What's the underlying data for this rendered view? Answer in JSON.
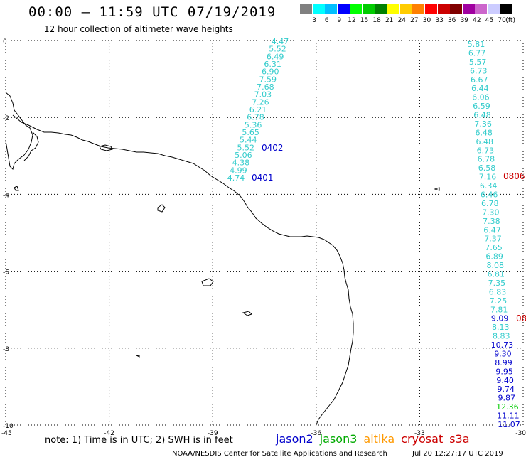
{
  "header": {
    "title": "00:00 – 11:59 UTC 07/19/2019",
    "subtitle": "12 hour collection of altimeter wave heights"
  },
  "colorbar": {
    "unit": "(ft)",
    "colors": [
      "#808080",
      "#00ffff",
      "#00bfff",
      "#0000ff",
      "#00ff00",
      "#00cc00",
      "#008000",
      "#ffff00",
      "#ffcc00",
      "#ff8000",
      "#ff0000",
      "#cc0000",
      "#800000",
      "#a000a0",
      "#cc66cc",
      "#ccccff",
      "#000000"
    ],
    "labels": [
      "3",
      "6",
      "9",
      "12",
      "15",
      "18",
      "21",
      "24",
      "27",
      "30",
      "33",
      "36",
      "39",
      "42",
      "45",
      "70"
    ]
  },
  "map": {
    "x_ticks": [
      "-45",
      "-42",
      "-39",
      "-36",
      "-33",
      "-30"
    ],
    "y_ticks": [
      "0",
      "-2",
      "-4",
      "-6",
      "-8",
      "-10"
    ],
    "x_range": [
      -45,
      -30
    ],
    "y_range": [
      -10,
      0
    ],
    "grid": true
  },
  "track_left": {
    "values": [
      "4.47",
      "5.52",
      "6.49",
      "6.31",
      "6.90",
      "7.59",
      "7.68",
      "7.03",
      "7.26",
      "6.21",
      "6.78",
      "5.36",
      "5.65",
      "5.44",
      "5.52",
      "5.06",
      "4.38",
      "4.99",
      "4.74"
    ],
    "color": "#33cccc",
    "time_labels": [
      {
        "text": "0402",
        "color": "#0000cc"
      },
      {
        "text": "0401",
        "color": "#0000cc"
      }
    ]
  },
  "track_right": {
    "values": [
      {
        "v": "5.81",
        "c": "#33cccc"
      },
      {
        "v": "6.77",
        "c": "#33cccc"
      },
      {
        "v": "5.57",
        "c": "#33cccc"
      },
      {
        "v": "6.73",
        "c": "#33cccc"
      },
      {
        "v": "6.67",
        "c": "#33cccc"
      },
      {
        "v": "6.44",
        "c": "#33cccc"
      },
      {
        "v": "6.06",
        "c": "#33cccc"
      },
      {
        "v": "6.59",
        "c": "#33cccc"
      },
      {
        "v": "6.48",
        "c": "#33cccc"
      },
      {
        "v": "7.36",
        "c": "#33cccc"
      },
      {
        "v": "6.48",
        "c": "#33cccc"
      },
      {
        "v": "6.48",
        "c": "#33cccc"
      },
      {
        "v": "6.73",
        "c": "#33cccc"
      },
      {
        "v": "6.78",
        "c": "#33cccc"
      },
      {
        "v": "6.58",
        "c": "#33cccc"
      },
      {
        "v": "7.16",
        "c": "#33cccc"
      },
      {
        "v": "6.34",
        "c": "#33cccc"
      },
      {
        "v": "6.46",
        "c": "#33cccc"
      },
      {
        "v": "6.78",
        "c": "#33cccc"
      },
      {
        "v": "7.30",
        "c": "#33cccc"
      },
      {
        "v": "7.38",
        "c": "#33cccc"
      },
      {
        "v": "6.47",
        "c": "#33cccc"
      },
      {
        "v": "7.37",
        "c": "#33cccc"
      },
      {
        "v": "7.65",
        "c": "#33cccc"
      },
      {
        "v": "6.89",
        "c": "#33cccc"
      },
      {
        "v": "8.08",
        "c": "#33cccc"
      },
      {
        "v": "6.81",
        "c": "#33cccc"
      },
      {
        "v": "7.35",
        "c": "#33cccc"
      },
      {
        "v": "6.83",
        "c": "#33cccc"
      },
      {
        "v": "7.25",
        "c": "#33cccc"
      },
      {
        "v": "7.81",
        "c": "#33cccc"
      },
      {
        "v": "9.09",
        "c": "#0000cc"
      },
      {
        "v": "8.13",
        "c": "#33cccc"
      },
      {
        "v": "8.83",
        "c": "#33cccc"
      },
      {
        "v": "10.73",
        "c": "#0000cc"
      },
      {
        "v": "9.30",
        "c": "#0000cc"
      },
      {
        "v": "8.99",
        "c": "#0000cc"
      },
      {
        "v": "9.95",
        "c": "#0000cc"
      },
      {
        "v": "9.40",
        "c": "#0000cc"
      },
      {
        "v": "9.74",
        "c": "#0000cc"
      },
      {
        "v": "9.87",
        "c": "#0000cc"
      },
      {
        "v": "12.36",
        "c": "#00cc00"
      },
      {
        "v": "11.11",
        "c": "#0000cc"
      },
      {
        "v": "11.07",
        "c": "#0000cc"
      }
    ],
    "time_labels": [
      {
        "text": "0806",
        "color": "#cc0000"
      },
      {
        "text": "08",
        "color": "#cc0000"
      }
    ]
  },
  "note": "note: 1) Time is in UTC; 2) SWH is in feet",
  "legend": [
    {
      "name": "jason2",
      "color": "#0000cc"
    },
    {
      "name": "jason3",
      "color": "#00aa00"
    },
    {
      "name": "altika",
      "color": "#ff9900"
    },
    {
      "name": "cryosat",
      "color": "#cc0000"
    },
    {
      "name": "s3a",
      "color": "#cc0000"
    }
  ],
  "footer": {
    "credit": "NOAA/NESDIS Center for Satellite Applications and Research",
    "timestamp": "Jul 20 12:27:17 UTC 2019"
  }
}
